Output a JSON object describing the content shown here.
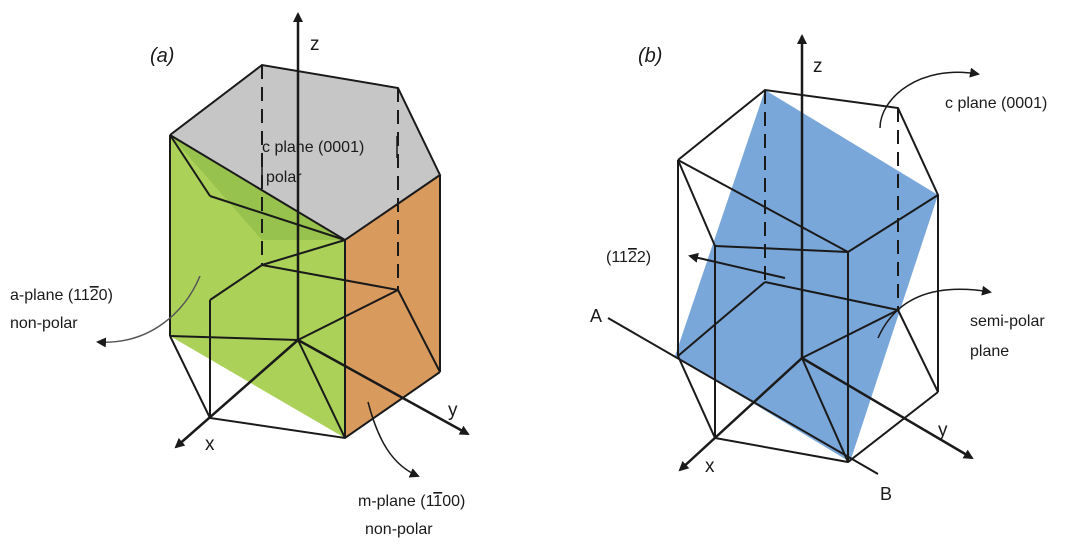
{
  "panel_a": {
    "label": "(a)",
    "axis_z": "z",
    "axis_y": "y",
    "axis_x": "x",
    "c_plane_line1": "c plane (0001)",
    "c_plane_line2": "polar",
    "a_plane_prefix": "a-plane (11",
    "a_plane_bar": "2",
    "a_plane_suffix": "0)",
    "a_plane_line2": "non-polar",
    "m_plane_prefix": "m-plane (1",
    "m_plane_bar": "1",
    "m_plane_suffix": "00)",
    "m_plane_line2": "non-polar"
  },
  "panel_b": {
    "label": "(b)",
    "axis_z": "z",
    "axis_y": "y",
    "axis_x": "x",
    "c_plane": "c plane (0001)",
    "plane_prefix": "(11",
    "plane_bar": "2",
    "plane_suffix": "2)",
    "semi_polar_line1": "semi-polar",
    "semi_polar_line2": "plane",
    "point_a": "A",
    "point_b": "B"
  },
  "colors": {
    "c_plane_gray": "#c6c6c6",
    "a_plane_green": "#a7cf4f",
    "m_plane_orange": "#d99a5e",
    "semi_polar_blue": "#6fa0d6",
    "edge": "#1a1a1a"
  }
}
